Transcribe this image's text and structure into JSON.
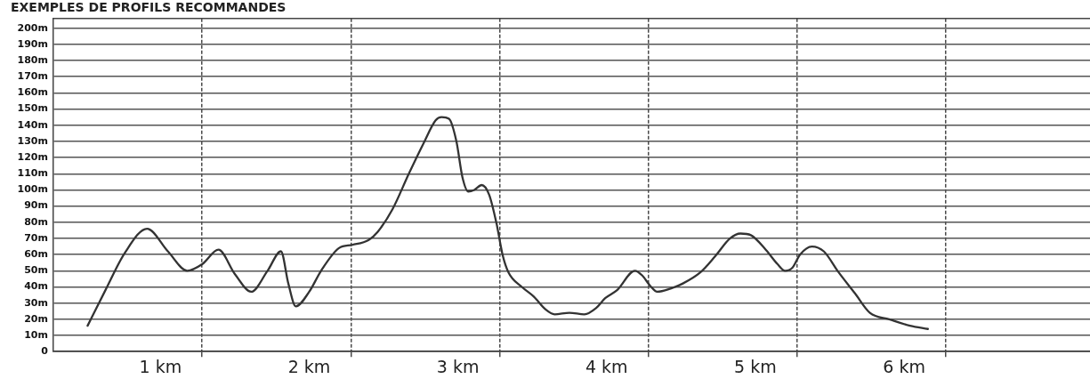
{
  "chart_data": {
    "type": "line",
    "title": "EXEMPLES DE PROFILS RECOMMANDES",
    "x": [
      0.51,
      0.63,
      0.76,
      0.91,
      1.05,
      1.18,
      1.28,
      1.39,
      1.5,
      1.61,
      1.72,
      1.81,
      1.86,
      1.91,
      2.0,
      2.08,
      2.2,
      2.29,
      2.4,
      2.46,
      2.56,
      2.67,
      2.77,
      2.85,
      2.89,
      2.94,
      2.99,
      3.03,
      3.07,
      3.11,
      3.16,
      3.21,
      3.26,
      3.3,
      3.34,
      3.43,
      3.51,
      3.59,
      3.65,
      3.75,
      3.85,
      3.93,
      3.99,
      4.07,
      4.19,
      4.24,
      4.29,
      4.34,
      4.43,
      4.51,
      4.63,
      4.73,
      4.83,
      4.9,
      4.97,
      5.07,
      5.15,
      5.2,
      5.25,
      5.3,
      5.38,
      5.46,
      5.56,
      5.67,
      5.77,
      5.9,
      6.04,
      6.16
    ],
    "series": [
      {
        "color": "#333333",
        "values": [
          16,
          38,
          61,
          76,
          62,
          50,
          54,
          63,
          48,
          37,
          50,
          62,
          42,
          28,
          37,
          50,
          64,
          66,
          69,
          74,
          88,
          110,
          129,
          143,
          145,
          144,
          130,
          108,
          99,
          100,
          103,
          97,
          79,
          60,
          49,
          40,
          34,
          26,
          23,
          24,
          23,
          27,
          33,
          38,
          50,
          47,
          41,
          37,
          39,
          42,
          49,
          59,
          70,
          73,
          72,
          63,
          54,
          50,
          52,
          60,
          65,
          62,
          49,
          36,
          24,
          20,
          16,
          14
        ]
      }
    ],
    "xlim": [
      0.28,
      7.25
    ],
    "xticks": [
      {
        "value": 1,
        "label": "1 km"
      },
      {
        "value": 1.28,
        "label": null
      },
      {
        "value": 2,
        "label": "2 km"
      },
      {
        "value": 2.28,
        "label": null
      },
      {
        "value": 3,
        "label": "3 km"
      },
      {
        "value": 3.28,
        "label": null
      },
      {
        "value": 4,
        "label": "4 km"
      },
      {
        "value": 4.28,
        "label": null
      },
      {
        "value": 5,
        "label": "5 km"
      },
      {
        "value": 5.28,
        "label": null
      },
      {
        "value": 6,
        "label": "6 km"
      },
      {
        "value": 6.28,
        "label": null
      }
    ],
    "ylim": [
      0,
      206
    ],
    "yticks": [
      0,
      {
        "value": 10,
        "label": "10m"
      },
      {
        "value": 20,
        "label": "20m"
      },
      {
        "value": 30,
        "label": "30m"
      },
      {
        "value": 40,
        "label": "40m"
      },
      {
        "value": 50,
        "label": "50m"
      },
      {
        "value": 60,
        "label": "60m"
      },
      {
        "value": 70,
        "label": "70m"
      },
      {
        "value": 80,
        "label": "80m"
      },
      {
        "value": 90,
        "label": "90m"
      },
      {
        "value": 100,
        "label": "100m"
      },
      {
        "value": 110,
        "label": "110m"
      },
      {
        "value": 120,
        "label": "120m"
      },
      {
        "value": 130,
        "label": "130m"
      },
      {
        "value": 140,
        "label": "140m"
      },
      {
        "value": 150,
        "label": "150m"
      },
      {
        "value": 160,
        "label": "160m"
      },
      {
        "value": 170,
        "label": "170m"
      },
      {
        "value": 180,
        "label": "180m"
      },
      {
        "value": 190,
        "label": "190m"
      },
      {
        "value": 200,
        "label": "200m"
      }
    ],
    "grid": true,
    "marker": "none",
    "line_style": "solid"
  }
}
